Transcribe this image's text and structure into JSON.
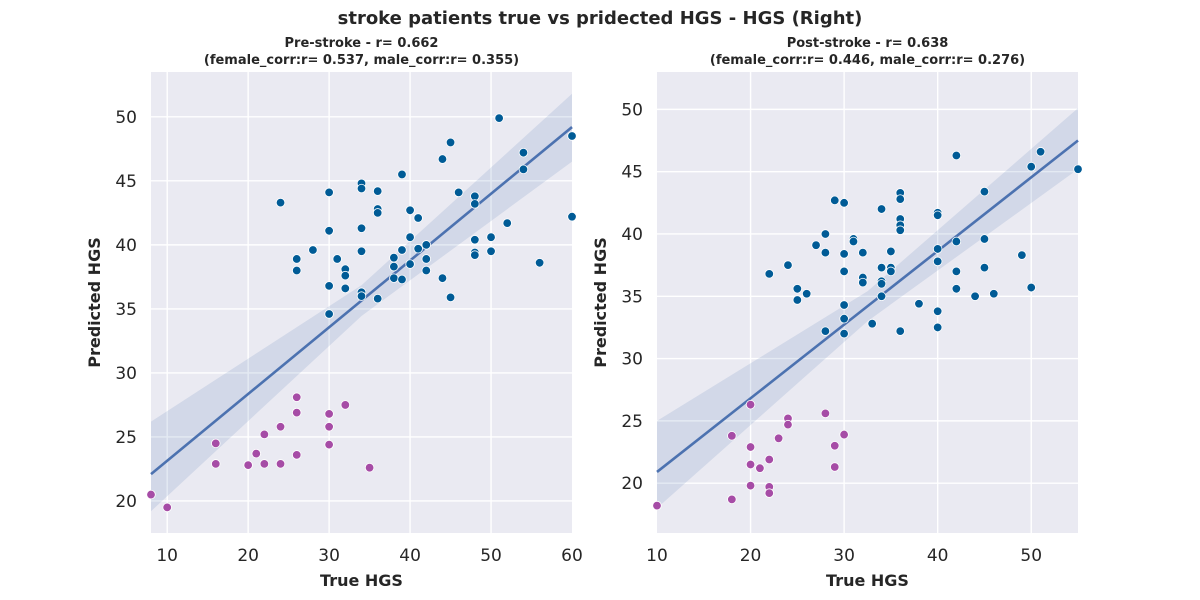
{
  "suptitle": "stroke patients true vs pridected HGS - HGS (Right)",
  "chart_data": [
    {
      "type": "scatter",
      "title_line1": "Pre-stroke - r= 0.662",
      "title_line2": "(female_corr:r= 0.537, male_corr:r= 0.355)",
      "xlabel": "True HGS",
      "ylabel": "Predicted HGS",
      "xlim": [
        8,
        60
      ],
      "ylim": [
        17.5,
        53.5
      ],
      "xticks": [
        10,
        20,
        30,
        40,
        50,
        60
      ],
      "yticks": [
        20,
        25,
        30,
        35,
        40,
        45,
        50
      ],
      "grid": true,
      "regression": {
        "x": [
          8,
          60
        ],
        "y": [
          22.1,
          49.2
        ],
        "ci_low": [
          19.2,
          46.5
        ],
        "ci_high": [
          26.2,
          51.8
        ]
      },
      "series": [
        {
          "color": "#005b96",
          "points": [
            [
              24,
              43.3
            ],
            [
              26,
              38.9
            ],
            [
              26,
              38.0
            ],
            [
              28,
              39.6
            ],
            [
              30,
              44.1
            ],
            [
              30,
              41.1
            ],
            [
              30,
              36.8
            ],
            [
              30,
              34.6
            ],
            [
              31,
              38.9
            ],
            [
              32,
              38.1
            ],
            [
              32,
              37.6
            ],
            [
              32,
              36.6
            ],
            [
              34,
              44.8
            ],
            [
              34,
              44.4
            ],
            [
              34,
              41.3
            ],
            [
              34,
              39.5
            ],
            [
              34,
              36.3
            ],
            [
              34,
              36.0
            ],
            [
              36,
              44.2
            ],
            [
              36,
              42.8
            ],
            [
              36,
              42.5
            ],
            [
              36,
              35.8
            ],
            [
              38,
              39.0
            ],
            [
              38,
              38.3
            ],
            [
              38,
              37.4
            ],
            [
              39,
              45.5
            ],
            [
              39,
              39.6
            ],
            [
              39,
              37.3
            ],
            [
              40,
              42.7
            ],
            [
              40,
              40.6
            ],
            [
              40,
              38.5
            ],
            [
              41,
              42.1
            ],
            [
              41,
              39.7
            ],
            [
              42,
              40.0
            ],
            [
              42,
              38.9
            ],
            [
              42,
              38.0
            ],
            [
              44,
              46.7
            ],
            [
              44,
              37.4
            ],
            [
              45,
              48.0
            ],
            [
              45,
              35.9
            ],
            [
              46,
              44.1
            ],
            [
              48,
              43.8
            ],
            [
              48,
              43.2
            ],
            [
              48,
              40.4
            ],
            [
              48,
              39.4
            ],
            [
              48,
              39.2
            ],
            [
              50,
              40.6
            ],
            [
              50,
              39.5
            ],
            [
              51,
              49.9
            ],
            [
              52,
              41.7
            ],
            [
              54,
              47.2
            ],
            [
              54,
              45.9
            ],
            [
              56,
              38.6
            ],
            [
              60,
              48.5
            ],
            [
              60,
              42.2
            ]
          ]
        },
        {
          "color": "#a64ca6",
          "points": [
            [
              8,
              20.5
            ],
            [
              10,
              19.5
            ],
            [
              16,
              24.5
            ],
            [
              16,
              22.9
            ],
            [
              20,
              22.8
            ],
            [
              21,
              23.7
            ],
            [
              22,
              25.2
            ],
            [
              22,
              22.9
            ],
            [
              24,
              25.8
            ],
            [
              24,
              22.9
            ],
            [
              26,
              28.1
            ],
            [
              26,
              26.9
            ],
            [
              26,
              23.6
            ],
            [
              30,
              26.8
            ],
            [
              30,
              25.8
            ],
            [
              30,
              24.4
            ],
            [
              32,
              27.5
            ],
            [
              35,
              22.6
            ]
          ]
        }
      ]
    },
    {
      "type": "scatter",
      "title_line1": "Post-stroke - r= 0.638",
      "title_line2": "(female_corr:r= 0.446, male_corr:r= 0.276)",
      "xlabel": "True HGS",
      "ylabel": "Predicted HGS",
      "xlim": [
        10,
        55
      ],
      "ylim": [
        16.0,
        53.0
      ],
      "xticks": [
        10,
        20,
        30,
        40,
        50
      ],
      "yticks": [
        20,
        25,
        30,
        35,
        40,
        45,
        50
      ],
      "grid": true,
      "regression": {
        "x": [
          10,
          55
        ],
        "y": [
          20.9,
          47.5
        ],
        "ci_low": [
          18.0,
          45.2
        ],
        "ci_high": [
          25.0,
          50.1
        ]
      },
      "series": [
        {
          "color": "#005b96",
          "points": [
            [
              22,
              36.8
            ],
            [
              24,
              37.5
            ],
            [
              25,
              35.6
            ],
            [
              25,
              34.7
            ],
            [
              26,
              35.2
            ],
            [
              27,
              39.1
            ],
            [
              28,
              40.0
            ],
            [
              28,
              38.5
            ],
            [
              28,
              32.2
            ],
            [
              29,
              42.7
            ],
            [
              30,
              42.5
            ],
            [
              30,
              38.4
            ],
            [
              30,
              37.0
            ],
            [
              30,
              34.3
            ],
            [
              30,
              33.2
            ],
            [
              30,
              32.0
            ],
            [
              31,
              39.6
            ],
            [
              31,
              39.4
            ],
            [
              32,
              38.5
            ],
            [
              32,
              36.5
            ],
            [
              32,
              36.1
            ],
            [
              33,
              32.8
            ],
            [
              34,
              42.0
            ],
            [
              34,
              37.3
            ],
            [
              34,
              36.2
            ],
            [
              34,
              36.0
            ],
            [
              34,
              35.0
            ],
            [
              35,
              38.6
            ],
            [
              35,
              37.3
            ],
            [
              35,
              37.0
            ],
            [
              36,
              43.3
            ],
            [
              36,
              42.8
            ],
            [
              36,
              41.2
            ],
            [
              36,
              40.7
            ],
            [
              36,
              40.3
            ],
            [
              36,
              32.2
            ],
            [
              38,
              34.4
            ],
            [
              40,
              41.7
            ],
            [
              40,
              41.5
            ],
            [
              40,
              38.8
            ],
            [
              40,
              37.8
            ],
            [
              40,
              33.8
            ],
            [
              40,
              32.5
            ],
            [
              42,
              46.3
            ],
            [
              42,
              39.4
            ],
            [
              42,
              37.0
            ],
            [
              42,
              35.6
            ],
            [
              44,
              35.0
            ],
            [
              45,
              43.4
            ],
            [
              45,
              39.6
            ],
            [
              45,
              37.3
            ],
            [
              46,
              35.2
            ],
            [
              49,
              38.3
            ],
            [
              50,
              45.4
            ],
            [
              50,
              35.7
            ],
            [
              51,
              46.6
            ],
            [
              55,
              45.2
            ]
          ]
        },
        {
          "color": "#a64ca6",
          "points": [
            [
              10,
              18.2
            ],
            [
              18,
              23.8
            ],
            [
              18,
              18.7
            ],
            [
              20,
              26.3
            ],
            [
              20,
              22.9
            ],
            [
              20,
              21.5
            ],
            [
              20,
              19.8
            ],
            [
              21,
              21.2
            ],
            [
              22,
              21.9
            ],
            [
              22,
              19.7
            ],
            [
              22,
              19.2
            ],
            [
              23,
              23.6
            ],
            [
              24,
              25.2
            ],
            [
              24,
              24.7
            ],
            [
              28,
              25.6
            ],
            [
              29,
              23.0
            ],
            [
              29,
              21.3
            ],
            [
              30,
              23.9
            ]
          ]
        }
      ]
    }
  ]
}
